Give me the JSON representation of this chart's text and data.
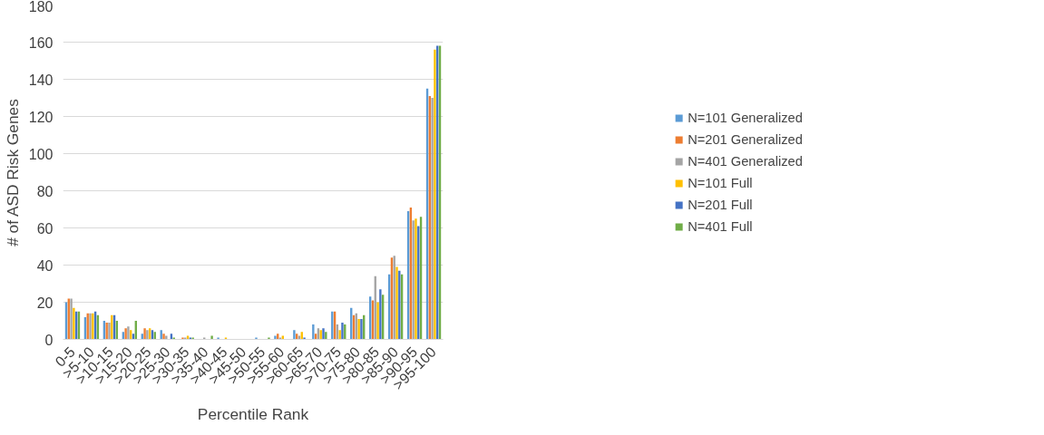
{
  "chart_data": {
    "type": "bar",
    "xlabel": "Percentile Rank",
    "ylabel": "# of ASD Risk Genes",
    "categories": [
      "0-5",
      ">5-10",
      ">10-15",
      ">15-20",
      ">20-25",
      ">25-30",
      ">30-35",
      ">35-40",
      ">40-45",
      ">45-50",
      ">50-55",
      ">55-60",
      ">60-65",
      ">65-70",
      ">70-75",
      ">75-80",
      ">80-85",
      ">85-90",
      ">90-95",
      ">95-100"
    ],
    "series": [
      {
        "name": "N=101 Generalized",
        "color": "#5b9bd5",
        "values": [
          20,
          12,
          10,
          4,
          3,
          5,
          0,
          0,
          1,
          0,
          1,
          2,
          5,
          8,
          15,
          17,
          23,
          35,
          69,
          135
        ]
      },
      {
        "name": "N=201 Generalized",
        "color": "#ed7d31",
        "values": [
          22,
          14,
          9,
          6,
          6,
          3,
          1,
          0,
          0,
          0,
          0,
          3,
          3,
          3,
          15,
          13,
          21,
          44,
          71,
          131
        ]
      },
      {
        "name": "N=401 Generalized",
        "color": "#a5a5a5",
        "values": [
          22,
          14,
          9,
          7,
          5,
          2,
          1,
          1,
          0,
          0,
          0,
          1,
          2,
          6,
          8,
          14,
          34,
          45,
          64,
          130
        ]
      },
      {
        "name": "N=101 Full",
        "color": "#ffc000",
        "values": [
          17,
          14,
          13,
          5,
          6,
          0,
          2,
          0,
          1,
          0,
          0,
          2,
          4,
          5,
          5,
          11,
          20,
          39,
          65,
          156
        ]
      },
      {
        "name": "N=201 Full",
        "color": "#4472c4",
        "values": [
          15,
          15,
          13,
          3,
          5,
          3,
          1,
          0,
          0,
          0,
          0,
          0,
          1,
          6,
          9,
          11,
          27,
          37,
          61,
          158
        ]
      },
      {
        "name": "N=401 Full",
        "color": "#70ad47",
        "values": [
          15,
          13,
          10,
          10,
          4,
          1,
          1,
          2,
          0,
          0,
          1,
          0,
          0,
          4,
          8,
          13,
          24,
          35,
          66,
          158
        ]
      }
    ],
    "ylim": [
      0,
      180
    ],
    "yticks": [
      0,
      20,
      40,
      60,
      80,
      100,
      120,
      140,
      160,
      180
    ],
    "grid": "y",
    "legend": "right"
  }
}
